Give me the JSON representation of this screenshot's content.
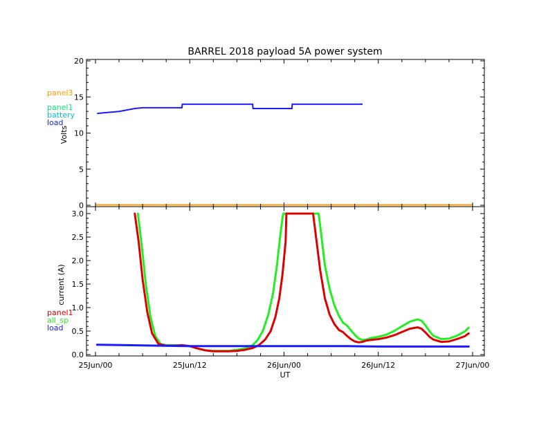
{
  "chart_data": [
    {
      "type": "line",
      "title": "BARREL 2018 payload 5A power system",
      "xlabel": "",
      "ylabel": "Volts",
      "ylim": [
        0,
        20
      ],
      "yticks": [
        0,
        5,
        10,
        15,
        20
      ],
      "xlim_hours": [
        0,
        48
      ],
      "grid": false,
      "legend_position": "left-outside",
      "series": [
        {
          "name": "panel3",
          "color": "#ff9900",
          "x_hours": [
            0,
            48
          ],
          "y": [
            0.05,
            0.05
          ]
        },
        {
          "name": "panel1",
          "color": "#00e676",
          "x_hours": [],
          "y": []
        },
        {
          "name": "battery",
          "color": "#00bcd4",
          "x_hours": [],
          "y": []
        },
        {
          "name": "load",
          "color": "#1a1aff",
          "x_hours": [
            0.2,
            1,
            2,
            3,
            4,
            5,
            6,
            6.05,
            11,
            11.05,
            20,
            20.05,
            25,
            25.05,
            34
          ],
          "y": [
            12.7,
            12.8,
            12.9,
            13.0,
            13.2,
            13.4,
            13.5,
            13.5,
            13.5,
            14.0,
            14.0,
            13.4,
            13.4,
            14.0,
            14.0
          ]
        }
      ]
    },
    {
      "type": "line",
      "title": "",
      "xlabel": "UT",
      "ylabel": "current (A)",
      "ylim": [
        0,
        3
      ],
      "yticks": [
        0.0,
        0.5,
        1.0,
        1.5,
        2.0,
        2.5,
        3.0
      ],
      "ytick_labels": [
        "0.0",
        "0.5",
        "1.0",
        "1.5",
        "2.0",
        "2.5",
        "3.0"
      ],
      "xlim_hours": [
        0,
        48
      ],
      "xticks_hours": [
        0,
        12,
        24,
        36,
        48
      ],
      "xtick_labels": [
        "25Jun/00",
        "25Jun/12",
        "26Jun/00",
        "26Jun/12",
        "27Jun/00"
      ],
      "grid": false,
      "legend_position": "left-outside",
      "series": [
        {
          "name": "panel1",
          "color": "#dd0000",
          "x_hours": [
            5.0,
            5.5,
            6.0,
            6.6,
            7.2,
            8.0,
            9.0,
            10.0,
            11.0,
            12.0,
            13.0,
            14.0,
            15.0,
            16.0,
            17.0,
            18.0,
            19.0,
            20.0,
            20.8,
            21.6,
            22.3,
            22.9,
            23.4,
            23.8,
            24.2,
            24.3,
            27.7,
            28.0,
            28.6,
            29.2,
            29.8,
            30.4,
            31.0,
            31.5,
            32.0,
            32.5,
            33.0,
            33.5,
            34.0,
            34.5,
            35.0,
            35.5,
            36.0,
            37.0,
            38.0,
            39.0,
            40.0,
            41.0,
            41.5,
            42.0,
            42.5,
            43.0,
            44.0,
            45.0,
            46.0,
            47.0,
            47.5
          ],
          "y": [
            3.0,
            2.4,
            1.6,
            0.9,
            0.45,
            0.23,
            0.19,
            0.19,
            0.2,
            0.18,
            0.13,
            0.09,
            0.07,
            0.07,
            0.07,
            0.08,
            0.1,
            0.14,
            0.2,
            0.32,
            0.5,
            0.8,
            1.2,
            1.7,
            2.4,
            3.0,
            3.0,
            2.6,
            1.8,
            1.2,
            0.85,
            0.65,
            0.52,
            0.48,
            0.4,
            0.33,
            0.28,
            0.26,
            0.27,
            0.3,
            0.31,
            0.32,
            0.33,
            0.36,
            0.41,
            0.48,
            0.55,
            0.58,
            0.55,
            0.47,
            0.38,
            0.32,
            0.27,
            0.28,
            0.33,
            0.39,
            0.45
          ]
        },
        {
          "name": "all_sp",
          "color": "#22ee22",
          "x_hours": [
            5.4,
            5.9,
            6.4,
            7.0,
            7.6,
            8.3,
            9.0,
            10.0,
            11.0,
            12.0,
            13.0,
            14.0,
            15.0,
            16.0,
            17.0,
            18.0,
            19.0,
            20.0,
            20.6,
            21.3,
            22.0,
            22.6,
            23.1,
            23.5,
            23.8,
            23.9,
            28.4,
            28.7,
            29.2,
            29.8,
            30.4,
            31.0,
            31.5,
            32.0,
            32.5,
            33.0,
            33.5,
            34.0,
            34.5,
            35.0,
            36.0,
            37.0,
            38.0,
            39.0,
            40.0,
            41.0,
            41.5,
            42.0,
            42.5,
            43.0,
            44.0,
            45.0,
            46.0,
            47.0,
            47.5
          ],
          "y": [
            3.0,
            2.3,
            1.5,
            0.8,
            0.4,
            0.22,
            0.2,
            0.2,
            0.2,
            0.18,
            0.13,
            0.09,
            0.08,
            0.08,
            0.08,
            0.1,
            0.13,
            0.2,
            0.3,
            0.5,
            0.85,
            1.3,
            1.9,
            2.5,
            2.9,
            3.0,
            3.0,
            2.6,
            1.9,
            1.4,
            1.05,
            0.82,
            0.68,
            0.62,
            0.52,
            0.42,
            0.34,
            0.31,
            0.32,
            0.35,
            0.38,
            0.42,
            0.5,
            0.6,
            0.7,
            0.75,
            0.72,
            0.62,
            0.5,
            0.4,
            0.33,
            0.34,
            0.4,
            0.49,
            0.57
          ]
        },
        {
          "name": "load",
          "color": "#1a1aff",
          "x_hours": [
            0.2,
            4,
            8,
            12,
            16,
            20,
            24,
            28,
            32,
            36,
            40,
            44,
            47.5
          ],
          "y": [
            0.21,
            0.2,
            0.19,
            0.18,
            0.18,
            0.18,
            0.18,
            0.18,
            0.18,
            0.17,
            0.17,
            0.17,
            0.17
          ]
        }
      ]
    }
  ]
}
